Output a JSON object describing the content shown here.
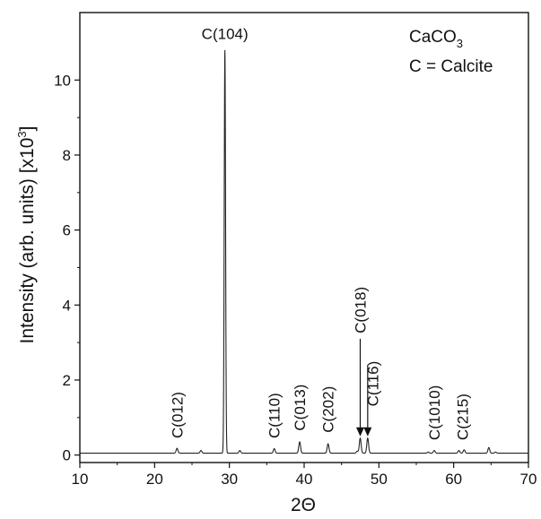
{
  "chart_data": {
    "type": "line",
    "title": "",
    "xlabel": "2Θ",
    "ylabel": "Intensity (arb. units) [x10",
    "ylabel_sup": "3",
    "ylabel_tail": "]",
    "xlim": [
      10,
      70
    ],
    "ylim": [
      -0.2,
      11.8
    ],
    "xticks": [
      10,
      20,
      30,
      40,
      50,
      60,
      70
    ],
    "yticks": [
      0,
      2,
      4,
      6,
      8,
      10
    ],
    "grid": false,
    "line_color": "#222222",
    "baseline": 0.05,
    "peaks": [
      {
        "x": 23.0,
        "y": 0.18
      },
      {
        "x": 26.2,
        "y": 0.12
      },
      {
        "x": 29.4,
        "y": 10.8
      },
      {
        "x": 31.4,
        "y": 0.12
      },
      {
        "x": 36.0,
        "y": 0.17
      },
      {
        "x": 39.4,
        "y": 0.35
      },
      {
        "x": 43.2,
        "y": 0.3
      },
      {
        "x": 47.1,
        "y": 0.1
      },
      {
        "x": 47.5,
        "y": 0.45
      },
      {
        "x": 48.5,
        "y": 0.45
      },
      {
        "x": 56.6,
        "y": 0.08
      },
      {
        "x": 57.4,
        "y": 0.12
      },
      {
        "x": 60.7,
        "y": 0.12
      },
      {
        "x": 61.4,
        "y": 0.14
      },
      {
        "x": 64.7,
        "y": 0.2
      },
      {
        "x": 65.6,
        "y": 0.08
      }
    ],
    "legend": {
      "line1": "CaCO",
      "line1_sub": "3",
      "line2": "C = Calcite",
      "placement": "top-right"
    },
    "annotations": [
      {
        "text": "C(012)",
        "x": 23.0,
        "y": 0.35,
        "rotate": true
      },
      {
        "text": "C(104)",
        "x": 29.4,
        "y": 11.0,
        "rotate": false
      },
      {
        "text": "C(110)",
        "x": 36.0,
        "y": 0.35,
        "rotate": true
      },
      {
        "text": "C(013)",
        "x": 39.4,
        "y": 0.55,
        "rotate": true
      },
      {
        "text": "C(202)",
        "x": 43.2,
        "y": 0.5,
        "rotate": true
      },
      {
        "text": "C(018)",
        "x": 47.5,
        "y": 3.15,
        "rotate": true,
        "arrow_from": 3.1,
        "arrow_to": 0.5
      },
      {
        "text": "C(116)",
        "x": 49.2,
        "y": 1.2,
        "rotate": true,
        "arrow_from": 2.4,
        "arrow_to": 0.5,
        "arrow_x": 48.5
      },
      {
        "text": "C(1010)",
        "x": 57.4,
        "y": 0.3,
        "rotate": true
      },
      {
        "text": "C(215)",
        "x": 61.2,
        "y": 0.3,
        "rotate": true
      }
    ]
  }
}
